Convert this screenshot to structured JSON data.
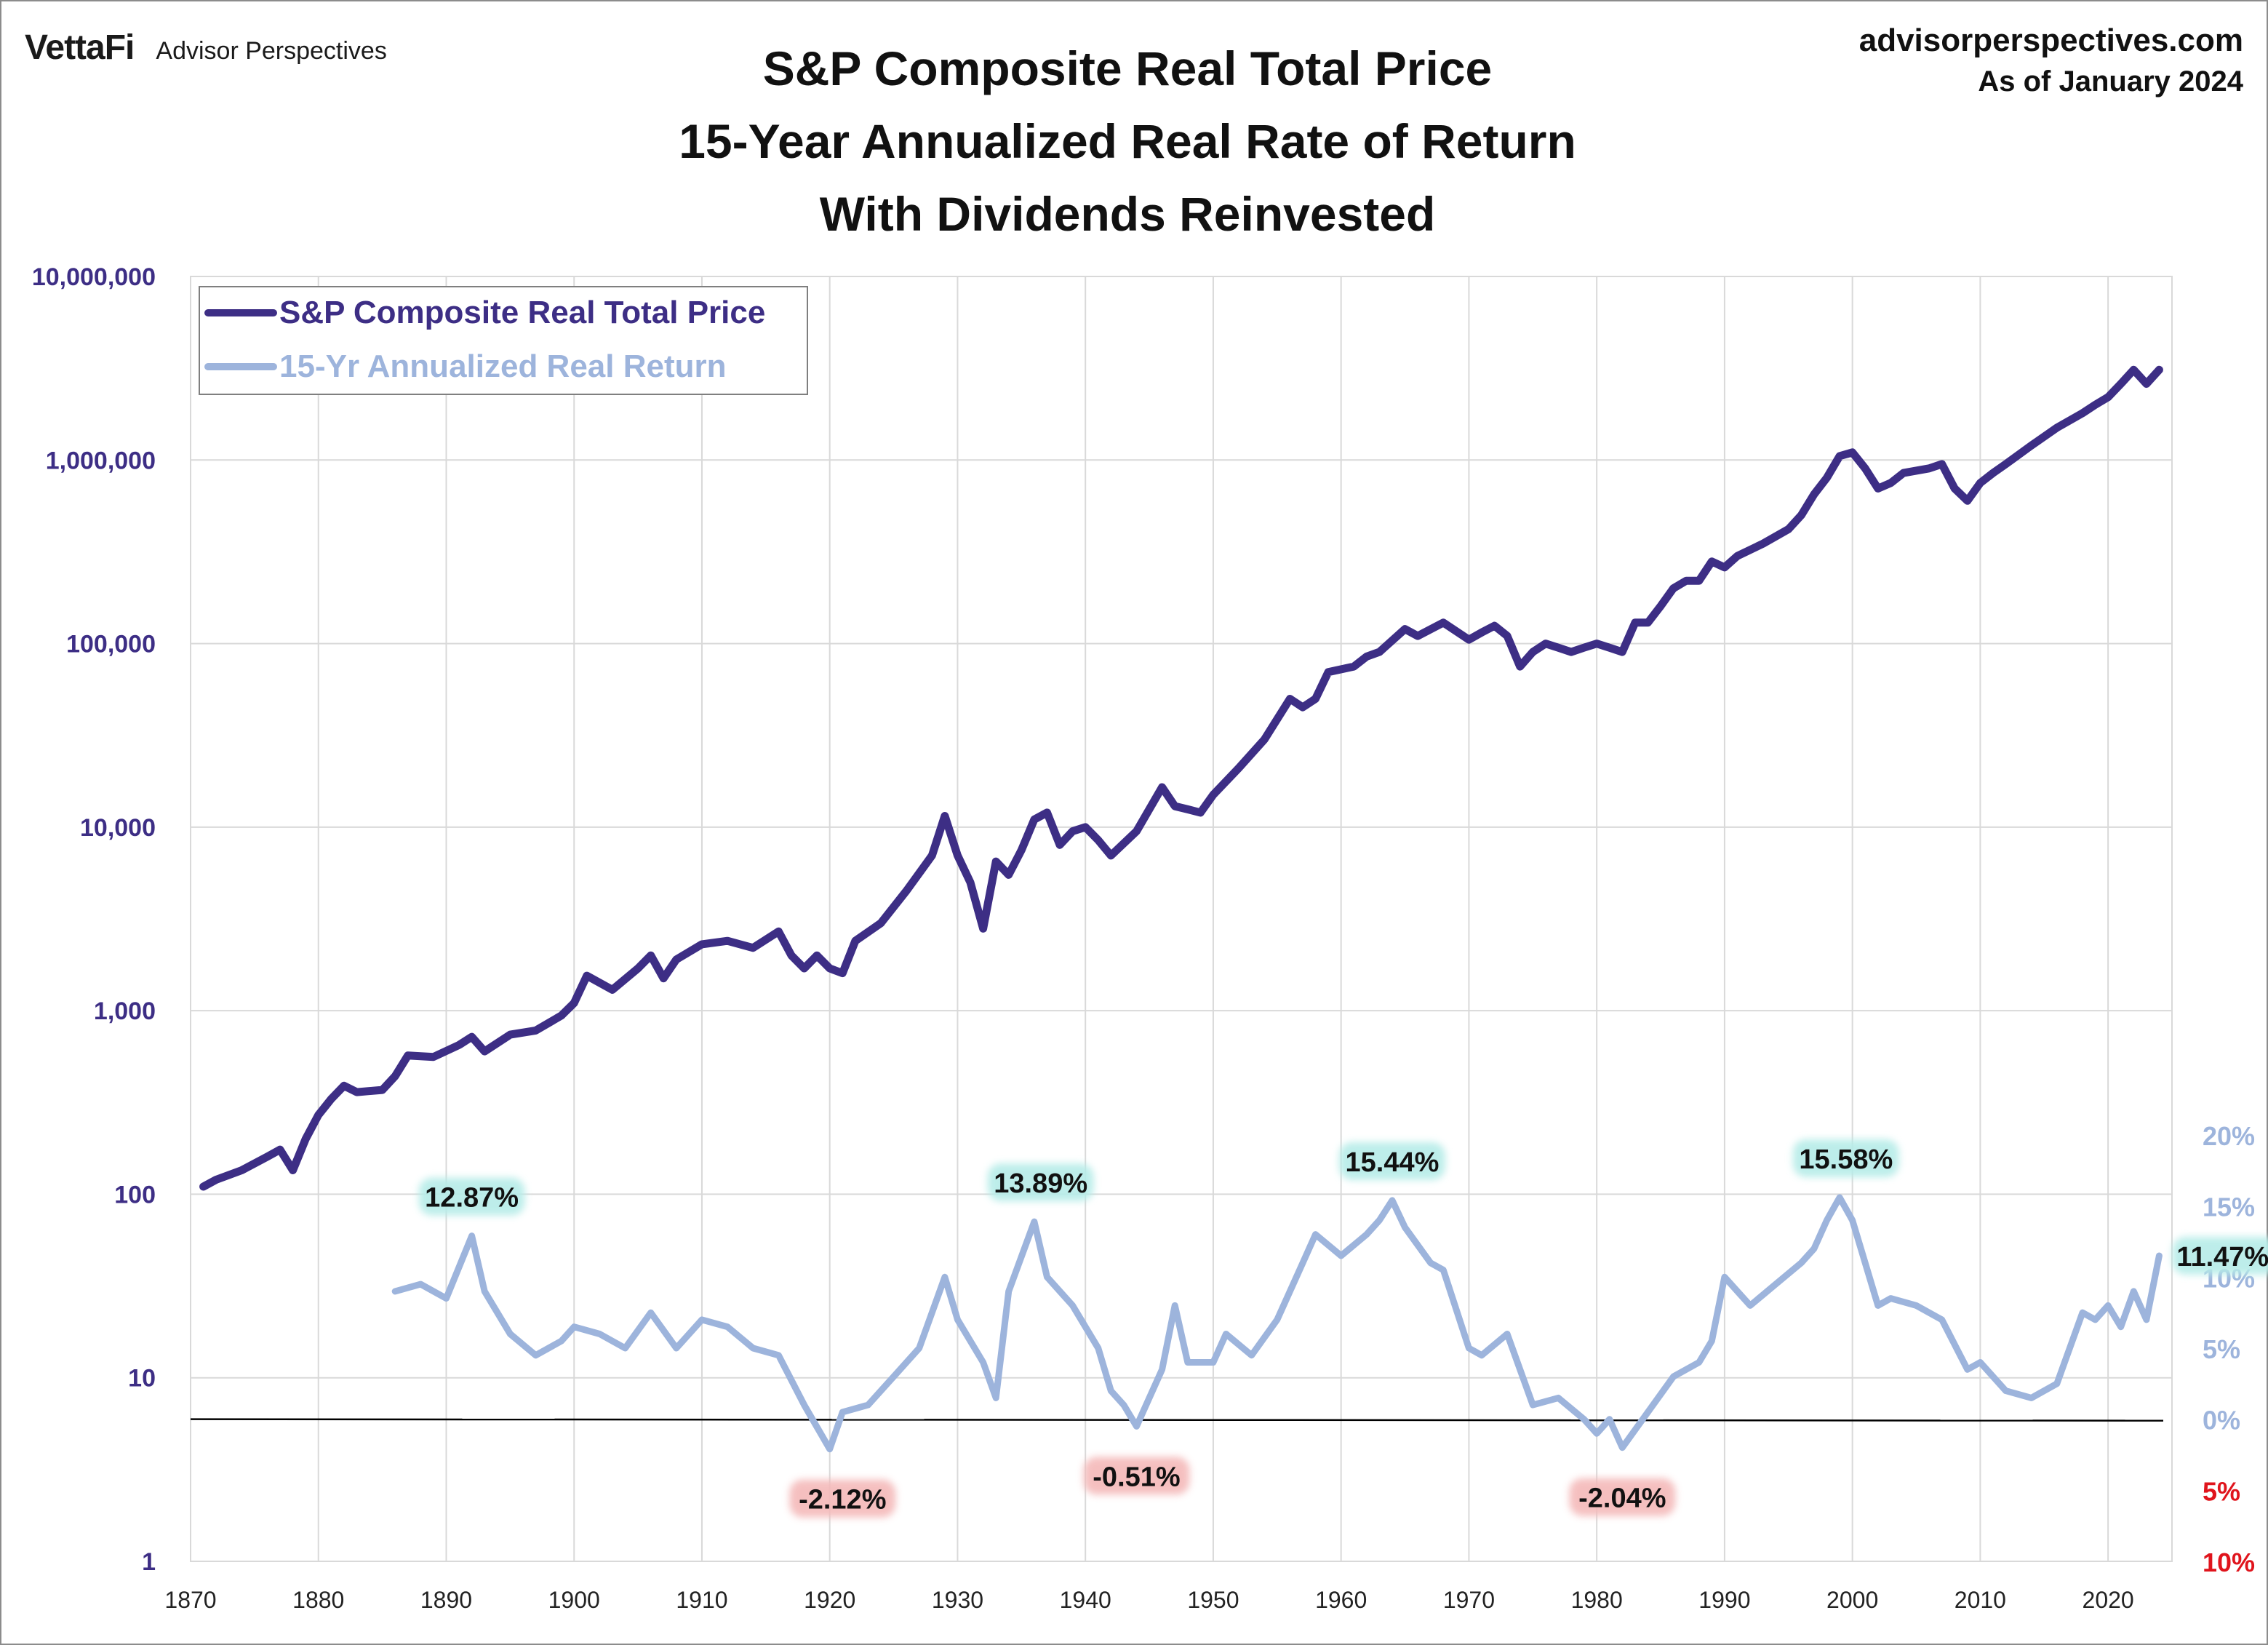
{
  "header": {
    "brand": "VettaFi",
    "brand_sub": "Advisor Perspectives",
    "site": "advisorperspectives.com",
    "as_of": "As of January 2024"
  },
  "chart_data": {
    "type": "line",
    "title": [
      "S&P Composite Real Total Price",
      "15-Year Annualized Real Rate of Return",
      "With Dividends Reinvested"
    ],
    "xlim": [
      1870,
      2025
    ],
    "x_ticks": [
      1870,
      1880,
      1890,
      1900,
      1910,
      1920,
      1930,
      1940,
      1950,
      1960,
      1970,
      1980,
      1990,
      2000,
      2010,
      2020
    ],
    "y_left": {
      "scale": "log",
      "range": [
        1,
        10000000
      ],
      "ticks": [
        1,
        10,
        100,
        1000,
        10000,
        100000,
        1000000,
        10000000
      ],
      "tick_labels": [
        "1",
        "10",
        "100",
        "1,000",
        "10,000",
        "100,000",
        "1,000,000",
        "10,000,000"
      ],
      "color": "#3d2e85"
    },
    "y_right": {
      "range": [
        -10,
        20
      ],
      "ticks": [
        20,
        15,
        10,
        5,
        0,
        -5,
        -10
      ],
      "tick_labels": [
        "20%",
        "15%",
        "10%",
        "5%",
        "0%",
        "5%",
        "10%"
      ],
      "label_colors": [
        "#9db4dc",
        "#9db4dc",
        "#9db4dc",
        "#9db4dc",
        "#9db4dc",
        "#e0141c",
        "#e0141c"
      ]
    },
    "grid": true,
    "legend": {
      "position": "top-left"
    },
    "series": [
      {
        "name": "S&P Composite Real Total Price",
        "axis": "left",
        "color": "#3d2e85",
        "x": [
          1871,
          1872,
          1874,
          1876,
          1877,
          1878,
          1879,
          1880,
          1881,
          1882,
          1883,
          1885,
          1886,
          1887,
          1889,
          1891,
          1892,
          1893,
          1895,
          1897,
          1899,
          1900,
          1901,
          1903,
          1905,
          1906,
          1907,
          1908,
          1910,
          1912,
          1914,
          1916,
          1917,
          1918,
          1919,
          1920,
          1921,
          1922,
          1924,
          1926,
          1928,
          1929,
          1930,
          1931,
          1932,
          1933,
          1934,
          1935,
          1936,
          1937,
          1938,
          1939,
          1940,
          1941,
          1942,
          1944,
          1946,
          1947,
          1948,
          1949,
          1950,
          1952,
          1954,
          1956,
          1957,
          1958,
          1959,
          1961,
          1962,
          1963,
          1965,
          1966,
          1968,
          1970,
          1971,
          1972,
          1973,
          1974,
          1975,
          1976,
          1977,
          1978,
          1979,
          1980,
          1981,
          1982,
          1983,
          1984,
          1985,
          1986,
          1987,
          1988,
          1989,
          1990,
          1991,
          1993,
          1995,
          1996,
          1997,
          1998,
          1999,
          2000,
          2001,
          2002,
          2003,
          2004,
          2006,
          2007,
          2008,
          2009,
          2010,
          2011,
          2012,
          2014,
          2016,
          2018,
          2019,
          2020,
          2021,
          2022,
          2023,
          2024
        ],
        "y": [
          110,
          120,
          135,
          160,
          175,
          135,
          200,
          270,
          330,
          390,
          360,
          370,
          440,
          570,
          560,
          650,
          720,
          600,
          740,
          780,
          940,
          1100,
          1550,
          1300,
          1700,
          2000,
          1500,
          1900,
          2300,
          2400,
          2200,
          2700,
          2000,
          1700,
          2000,
          1700,
          1600,
          2400,
          3000,
          4500,
          7000,
          11500,
          7000,
          5000,
          2800,
          6500,
          5500,
          7500,
          11000,
          12000,
          8000,
          9500,
          10000,
          8500,
          7000,
          9500,
          16500,
          13000,
          12500,
          12000,
          15000,
          21000,
          30000,
          50000,
          45000,
          50000,
          70000,
          75000,
          85000,
          90000,
          120000,
          110000,
          130000,
          105000,
          115000,
          125000,
          110000,
          75000,
          90000,
          100000,
          95000,
          90000,
          95000,
          100000,
          95000,
          90000,
          130000,
          130000,
          160000,
          200000,
          220000,
          220000,
          280000,
          260000,
          300000,
          350000,
          420000,
          500000,
          650000,
          800000,
          1050000,
          1100000,
          900000,
          700000,
          750000,
          850000,
          900000,
          950000,
          700000,
          600000,
          750000,
          850000,
          950000,
          1200000,
          1500000,
          1800000,
          2000000,
          2200000,
          2600000,
          3100000,
          2600000,
          3100000
        ]
      },
      {
        "name": "15-Yr Annualized Real Return",
        "axis": "right",
        "color": "#9db4dc",
        "x": [
          1886,
          1888,
          1890,
          1892,
          1893,
          1895,
          1897,
          1899,
          1900,
          1902,
          1904,
          1906,
          1908,
          1910,
          1912,
          1914,
          1916,
          1918,
          1920,
          1921,
          1923,
          1925,
          1927,
          1929,
          1930,
          1932,
          1933,
          1934,
          1936,
          1937,
          1939,
          1941,
          1942,
          1943,
          1944,
          1946,
          1947,
          1948,
          1950,
          1951,
          1953,
          1955,
          1957,
          1958,
          1960,
          1962,
          1963,
          1964,
          1965,
          1967,
          1968,
          1970,
          1971,
          1973,
          1974,
          1975,
          1977,
          1979,
          1980,
          1981,
          1982,
          1984,
          1986,
          1988,
          1989,
          1990,
          1992,
          1994,
          1996,
          1997,
          1998,
          1999,
          2000,
          2002,
          2003,
          2005,
          2007,
          2009,
          2010,
          2012,
          2014,
          2016,
          2017,
          2018,
          2019,
          2020,
          2021,
          2022,
          2023,
          2024
        ],
        "y": [
          9.0,
          9.5,
          8.5,
          12.9,
          9.0,
          6.0,
          4.5,
          5.5,
          6.5,
          6.0,
          5.0,
          7.5,
          5.0,
          7.0,
          6.5,
          5.0,
          4.5,
          1.0,
          -2.1,
          0.5,
          1.0,
          3.0,
          5.0,
          10.0,
          7.0,
          4.0,
          1.5,
          9.0,
          13.9,
          10.0,
          8.0,
          5.0,
          2.0,
          1.0,
          -0.5,
          3.5,
          8.0,
          4.0,
          4.0,
          6.0,
          4.5,
          7.0,
          11.0,
          13.0,
          11.5,
          13.0,
          14.0,
          15.4,
          13.5,
          11.0,
          10.5,
          5.0,
          4.5,
          6.0,
          3.5,
          1.0,
          1.5,
          0.0,
          -1.0,
          0.0,
          -2.0,
          0.5,
          3.0,
          4.0,
          5.5,
          10.0,
          8.0,
          9.5,
          11.0,
          12.0,
          14.0,
          15.6,
          14.0,
          8.0,
          8.5,
          8.0,
          7.0,
          3.5,
          4.0,
          2.0,
          1.5,
          2.5,
          5.0,
          7.5,
          7.0,
          8.0,
          6.5,
          9.0,
          7.0,
          11.5
        ]
      }
    ],
    "annotations": [
      {
        "text": "12.87%",
        "x": 1892,
        "y": 12.9,
        "kind": "peak"
      },
      {
        "text": "13.89%",
        "x": 1936.5,
        "y": 13.9,
        "kind": "peak"
      },
      {
        "text": "15.44%",
        "x": 1964,
        "y": 15.4,
        "kind": "peak"
      },
      {
        "text": "15.58%",
        "x": 1999.5,
        "y": 15.6,
        "kind": "peak"
      },
      {
        "text": "11.47%",
        "x": 2024,
        "y": 11.5,
        "kind": "last"
      },
      {
        "text": "-2.12%",
        "x": 1921,
        "y": -2.1,
        "kind": "trough"
      },
      {
        "text": "-0.51%",
        "x": 1944,
        "y": -0.5,
        "kind": "trough"
      },
      {
        "text": "-2.04%",
        "x": 1982,
        "y": -2.0,
        "kind": "trough"
      }
    ],
    "zero_line": {
      "axis": "right",
      "value": 0,
      "color": "#000000"
    }
  }
}
